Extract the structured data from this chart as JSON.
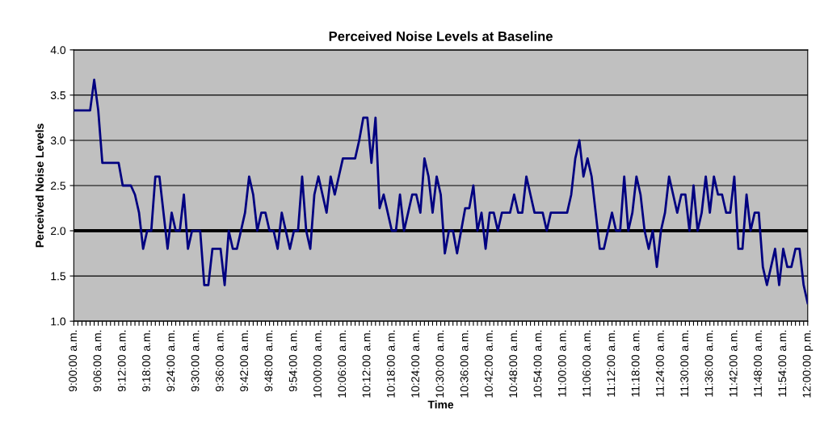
{
  "chart_data": {
    "type": "line",
    "title": "Perceived Noise Levels at Baseline",
    "xlabel": "Time",
    "ylabel": "Perceived Noise Levels",
    "categories": [
      "9:00:00 a.m.",
      null,
      null,
      null,
      null,
      null,
      "9:06:00 a.m.",
      null,
      null,
      null,
      null,
      null,
      "9:12:00 a.m.",
      null,
      null,
      null,
      null,
      null,
      "9:18:00 a.m.",
      null,
      null,
      null,
      null,
      null,
      "9:24:00 a.m.",
      null,
      null,
      null,
      null,
      null,
      "9:30:00 a.m.",
      null,
      null,
      null,
      null,
      null,
      "9:36:00 a.m.",
      null,
      null,
      null,
      null,
      null,
      "9:42:00 a.m.",
      null,
      null,
      null,
      null,
      null,
      "9:48:00 a.m.",
      null,
      null,
      null,
      null,
      null,
      "9:54:00 a.m.",
      null,
      null,
      null,
      null,
      null,
      "10:00:00 a.m.",
      null,
      null,
      null,
      null,
      null,
      "10:06:00 a.m.",
      null,
      null,
      null,
      null,
      null,
      "10:12:00 a.m.",
      null,
      null,
      null,
      null,
      null,
      "10:18:00 a.m.",
      null,
      null,
      null,
      null,
      null,
      "10:24:00 a.m.",
      null,
      null,
      null,
      null,
      null,
      "10:30:00 a.m.",
      null,
      null,
      null,
      null,
      null,
      "10:36:00 a.m.",
      null,
      null,
      null,
      null,
      null,
      "10:42:00 a.m.",
      null,
      null,
      null,
      null,
      null,
      "10:48:00 a.m.",
      null,
      null,
      null,
      null,
      null,
      "10:54:00 a.m.",
      null,
      null,
      null,
      null,
      null,
      "11:00:00 a.m.",
      null,
      null,
      null,
      null,
      null,
      "11:06:00 a.m.",
      null,
      null,
      null,
      null,
      null,
      "11:12:00 a.m.",
      null,
      null,
      null,
      null,
      null,
      "11:18:00 a.m.",
      null,
      null,
      null,
      null,
      null,
      "11:24:00 a.m.",
      null,
      null,
      null,
      null,
      null,
      "11:30:00 a.m.",
      null,
      null,
      null,
      null,
      null,
      "11:36:00 a.m.",
      null,
      null,
      null,
      null,
      null,
      "11:42:00 a.m.",
      null,
      null,
      null,
      null,
      null,
      "11:48:00 a.m.",
      null,
      null,
      null,
      null,
      null,
      "11:54:00 a.m.",
      null,
      null,
      null,
      null,
      null,
      "12:00:00 p.m."
    ],
    "series": [
      {
        "color": "#000080",
        "values": [
          3.33,
          3.33,
          3.33,
          3.33,
          3.33,
          3.67,
          3.33,
          2.75,
          2.75,
          2.75,
          2.75,
          2.75,
          2.5,
          2.5,
          2.5,
          2.4,
          2.2,
          1.8,
          2.0,
          2.0,
          2.6,
          2.6,
          2.2,
          1.8,
          2.2,
          2.0,
          2.0,
          2.4,
          1.8,
          2.0,
          2.0,
          2.0,
          1.4,
          1.4,
          1.8,
          1.8,
          1.8,
          1.4,
          2.0,
          1.8,
          1.8,
          2.0,
          2.2,
          2.6,
          2.4,
          2.0,
          2.2,
          2.2,
          2.0,
          2.0,
          1.8,
          2.2,
          2.0,
          1.8,
          2.0,
          2.0,
          2.6,
          2.0,
          1.8,
          2.4,
          2.6,
          2.4,
          2.2,
          2.6,
          2.4,
          2.6,
          2.8,
          2.8,
          2.8,
          2.8,
          3.0,
          3.25,
          3.25,
          2.75,
          3.25,
          2.25,
          2.4,
          2.2,
          2.0,
          2.0,
          2.4,
          2.0,
          2.2,
          2.4,
          2.4,
          2.2,
          2.8,
          2.6,
          2.2,
          2.6,
          2.4,
          1.75,
          2.0,
          2.0,
          1.75,
          2.0,
          2.25,
          2.25,
          2.5,
          2.0,
          2.2,
          1.8,
          2.2,
          2.2,
          2.0,
          2.2,
          2.2,
          2.2,
          2.4,
          2.2,
          2.2,
          2.6,
          2.4,
          2.2,
          2.2,
          2.2,
          2.0,
          2.2,
          2.2,
          2.2,
          2.2,
          2.2,
          2.4,
          2.8,
          3.0,
          2.6,
          2.8,
          2.6,
          2.2,
          1.8,
          1.8,
          2.0,
          2.2,
          2.0,
          2.0,
          2.6,
          2.0,
          2.2,
          2.6,
          2.4,
          2.0,
          1.8,
          2.0,
          1.6,
          2.0,
          2.2,
          2.6,
          2.4,
          2.2,
          2.4,
          2.4,
          2.0,
          2.5,
          2.0,
          2.2,
          2.6,
          2.2,
          2.6,
          2.4,
          2.4,
          2.2,
          2.2,
          2.6,
          1.8,
          1.8,
          2.4,
          2.0,
          2.2,
          2.2,
          1.6,
          1.4,
          1.6,
          1.8,
          1.4,
          1.8,
          1.6,
          1.6,
          1.8,
          1.8,
          1.4,
          1.2
        ]
      }
    ],
    "ylim": [
      1.0,
      4.0
    ],
    "yticks": [
      {
        "value": 1.0,
        "label": "1.0"
      },
      {
        "value": 1.5,
        "label": "1.5"
      },
      {
        "value": 2.0,
        "label": "2.0"
      },
      {
        "value": 2.5,
        "label": "2.5"
      },
      {
        "value": 3.0,
        "label": "3.0"
      },
      {
        "value": 3.5,
        "label": "3.5"
      },
      {
        "value": 4.0,
        "label": "4.0"
      }
    ],
    "ref_lines": [
      {
        "axis": "y",
        "value": 2.0,
        "color": "#000000"
      }
    ],
    "grid": "y",
    "marker": "none",
    "line_style": "solid",
    "legend": false
  }
}
